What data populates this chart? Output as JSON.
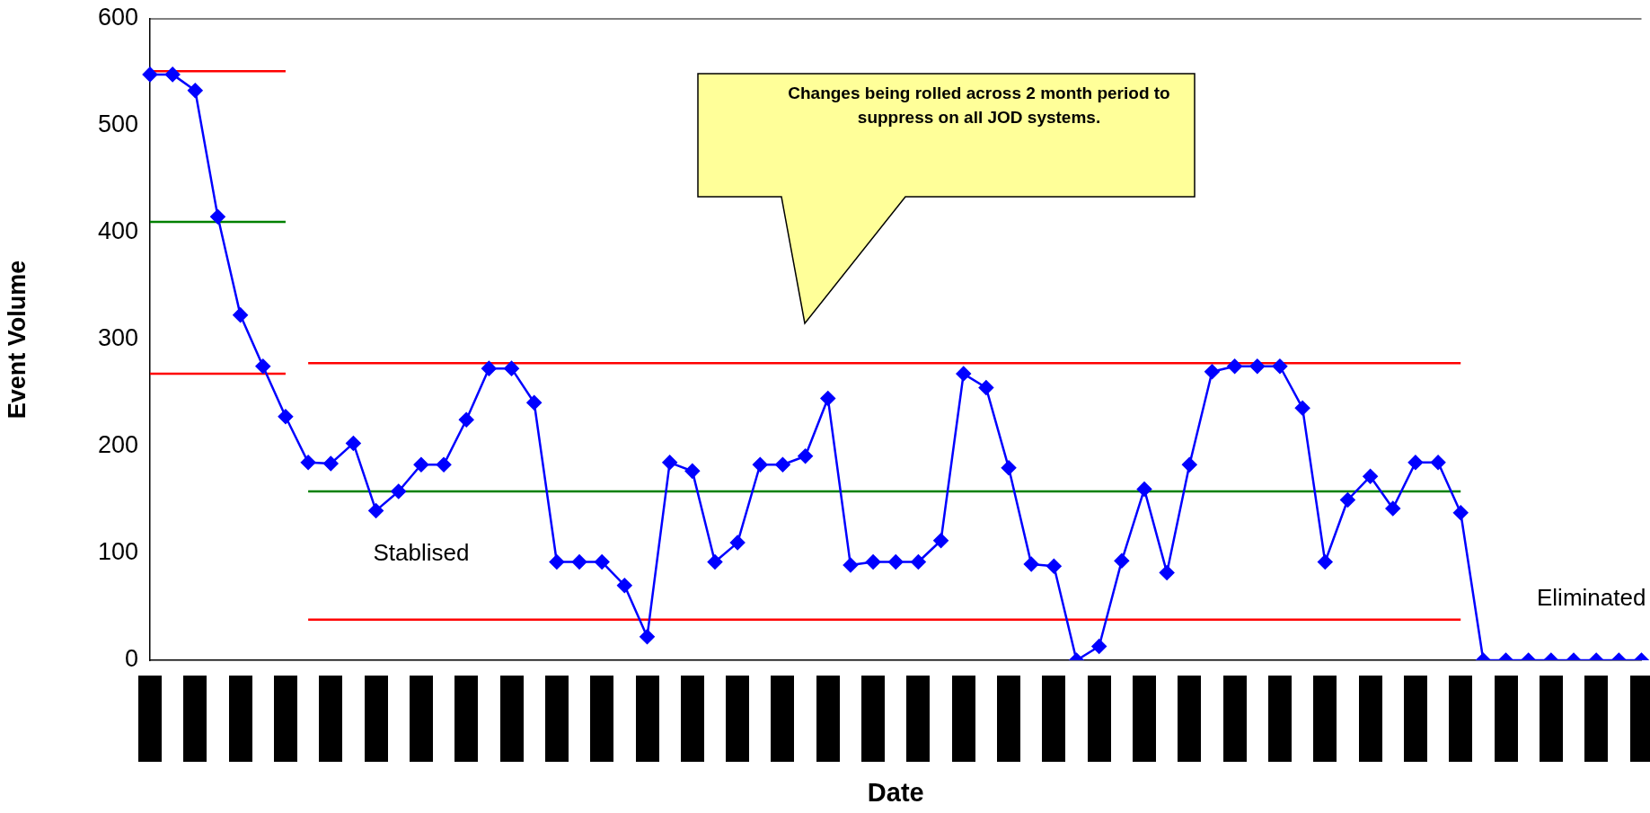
{
  "chart_data": {
    "type": "line",
    "xlabel": "Date",
    "ylabel": "Event Volume",
    "categories": [
      null,
      null,
      null,
      null,
      null,
      null,
      null,
      null,
      null,
      null,
      null,
      null,
      null,
      null,
      null,
      null,
      null,
      null,
      null,
      null,
      null,
      null,
      null,
      null,
      null,
      null,
      null,
      null,
      null,
      null,
      null,
      null,
      null,
      null,
      null,
      null,
      null,
      null,
      null,
      null,
      null,
      null,
      null,
      null,
      null,
      null,
      null,
      null,
      null,
      null,
      null,
      null,
      null,
      null,
      null,
      null,
      null,
      null,
      null,
      null,
      null,
      null,
      null,
      null,
      null,
      null,
      null
    ],
    "series": [
      {
        "color": "#0000ff",
        "marker": "diamond",
        "values": [
          548,
          548,
          533,
          415,
          323,
          275,
          228,
          185,
          184,
          203,
          140,
          158,
          183,
          183,
          225,
          273,
          273,
          241,
          92,
          92,
          92,
          70,
          22,
          185,
          177,
          92,
          110,
          183,
          183,
          191,
          245,
          89,
          92,
          92,
          92,
          112,
          268,
          255,
          180,
          90,
          88,
          0,
          13,
          93,
          160,
          82,
          183,
          270,
          275,
          275,
          275,
          236,
          92,
          150,
          172,
          142,
          185,
          185,
          138,
          0,
          0,
          0,
          0,
          0,
          0,
          0,
          0
        ]
      },
      {
        "color": "#ff0000",
        "marker": "none",
        "values": [
          551,
          551,
          551,
          551,
          551,
          551,
          551,
          null,
          null,
          null,
          null,
          null,
          null,
          null,
          null,
          null,
          null,
          null,
          null,
          null,
          null,
          null,
          null,
          null,
          null,
          null,
          null,
          null,
          null,
          null,
          null,
          null,
          null,
          null,
          null,
          null,
          null,
          null,
          null,
          null,
          null,
          null,
          null,
          null,
          null,
          null,
          null,
          null,
          null,
          null,
          null,
          null,
          null,
          null,
          null,
          null,
          null,
          null,
          null,
          null,
          null,
          null,
          null,
          null,
          null,
          null,
          null
        ]
      },
      {
        "color": "#008000",
        "marker": "none",
        "values": [
          410,
          410,
          410,
          410,
          410,
          410,
          410,
          null,
          null,
          null,
          null,
          null,
          null,
          null,
          null,
          null,
          null,
          null,
          null,
          null,
          null,
          null,
          null,
          null,
          null,
          null,
          null,
          null,
          null,
          null,
          null,
          null,
          null,
          null,
          null,
          null,
          null,
          null,
          null,
          null,
          null,
          null,
          null,
          null,
          null,
          null,
          null,
          null,
          null,
          null,
          null,
          null,
          null,
          null,
          null,
          null,
          null,
          null,
          null,
          null,
          null,
          null,
          null,
          null,
          null,
          null,
          null
        ]
      },
      {
        "color": "#ff0000",
        "marker": "none",
        "values": [
          268,
          268,
          268,
          268,
          268,
          268,
          268,
          null,
          null,
          null,
          null,
          null,
          null,
          null,
          null,
          null,
          null,
          null,
          null,
          null,
          null,
          null,
          null,
          null,
          null,
          null,
          null,
          null,
          null,
          null,
          null,
          null,
          null,
          null,
          null,
          null,
          null,
          null,
          null,
          null,
          null,
          null,
          null,
          null,
          null,
          null,
          null,
          null,
          null,
          null,
          null,
          null,
          null,
          null,
          null,
          null,
          null,
          null,
          null,
          null,
          null,
          null,
          null,
          null,
          null,
          null,
          null
        ]
      },
      {
        "color": "#ff0000",
        "marker": "none",
        "values": [
          null,
          null,
          null,
          null,
          null,
          null,
          null,
          278,
          278,
          278,
          278,
          278,
          278,
          278,
          278,
          278,
          278,
          278,
          278,
          278,
          278,
          278,
          278,
          278,
          278,
          278,
          278,
          278,
          278,
          278,
          278,
          278,
          278,
          278,
          278,
          278,
          278,
          278,
          278,
          278,
          278,
          278,
          278,
          278,
          278,
          278,
          278,
          278,
          278,
          278,
          278,
          278,
          278,
          278,
          278,
          278,
          278,
          278,
          278,
          null,
          null,
          null,
          null,
          null,
          null,
          null,
          null
        ]
      },
      {
        "color": "#008000",
        "marker": "none",
        "values": [
          null,
          null,
          null,
          null,
          null,
          null,
          null,
          158,
          158,
          158,
          158,
          158,
          158,
          158,
          158,
          158,
          158,
          158,
          158,
          158,
          158,
          158,
          158,
          158,
          158,
          158,
          158,
          158,
          158,
          158,
          158,
          158,
          158,
          158,
          158,
          158,
          158,
          158,
          158,
          158,
          158,
          158,
          158,
          158,
          158,
          158,
          158,
          158,
          158,
          158,
          158,
          158,
          158,
          158,
          158,
          158,
          158,
          158,
          158,
          null,
          null,
          null,
          null,
          null,
          null,
          null,
          null
        ]
      },
      {
        "color": "#ff0000",
        "marker": "none",
        "values": [
          null,
          null,
          null,
          null,
          null,
          null,
          null,
          38,
          38,
          38,
          38,
          38,
          38,
          38,
          38,
          38,
          38,
          38,
          38,
          38,
          38,
          38,
          38,
          38,
          38,
          38,
          38,
          38,
          38,
          38,
          38,
          38,
          38,
          38,
          38,
          38,
          38,
          38,
          38,
          38,
          38,
          38,
          38,
          38,
          38,
          38,
          38,
          38,
          38,
          38,
          38,
          38,
          38,
          38,
          38,
          38,
          38,
          38,
          38,
          null,
          null,
          null,
          null,
          null,
          null,
          null,
          null
        ]
      }
    ],
    "ylim": [
      0,
      600
    ],
    "yticks": [
      0,
      100,
      200,
      300,
      400,
      500,
      600
    ],
    "grid": false,
    "legend": false,
    "annotations": [
      "Changes being rolled across 2 month period to suppress on all JOD systems.",
      "Stablised",
      "Eliminated"
    ]
  }
}
